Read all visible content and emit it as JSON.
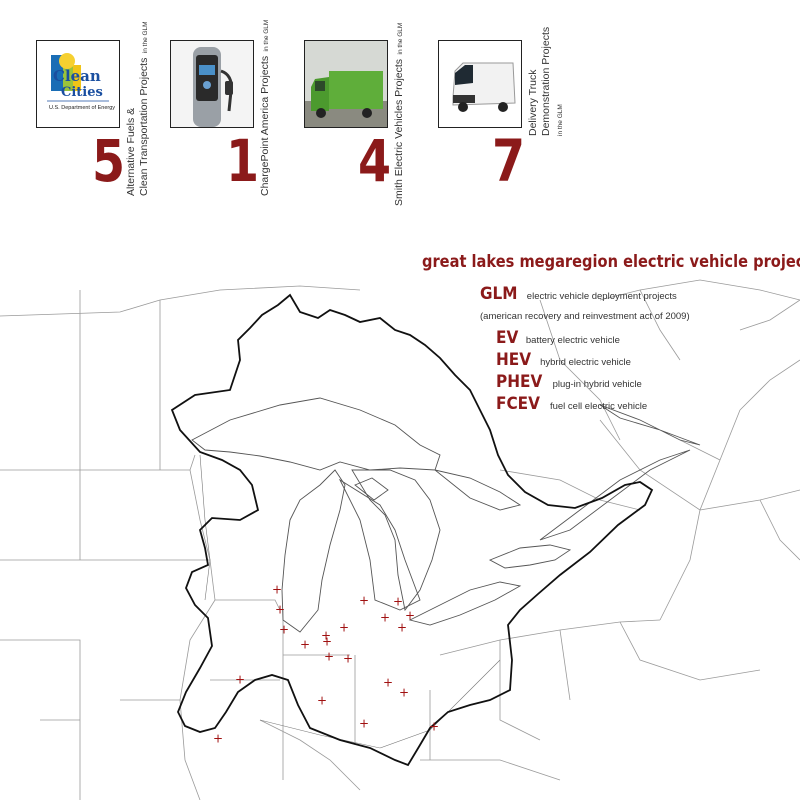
{
  "title": "great lakes megaregion electric vehicle projects",
  "glm": {
    "abbr": "GLM",
    "line1": "electric vehicle deployment projects",
    "line2": "(american recovery and reinvestment act of 2009)"
  },
  "legend": [
    {
      "abbr": "EV",
      "desc": "battery electric vehicle"
    },
    {
      "abbr": "HEV",
      "desc": "hybrid electric vehicle"
    },
    {
      "abbr": "PHEV",
      "desc": "plug-in hybrid vehicle"
    },
    {
      "abbr": "FCEV",
      "desc": "fuel cell electric vehicle"
    }
  ],
  "project_tiles": [
    {
      "count": "5",
      "label_line1": "Alternative Fuels &",
      "label_line2": "Clean Transportation Projects",
      "suffix": "in the GLM",
      "logo_text1": "Clean",
      "logo_text2": "Cities",
      "logo_text3": "U.S. Department of Energy"
    },
    {
      "count": "1",
      "label_line1": "ChargePoint America Projects",
      "suffix": "in the GLM",
      "image": "charging-station"
    },
    {
      "count": "4",
      "label_line1": "Smith Electric Vehicles Projects",
      "suffix": "in the GLM",
      "image": "green-delivery-truck"
    },
    {
      "count": "7",
      "label_line1": "Delivery Truck",
      "label_line2": "Demonstration Projects",
      "suffix": "in the GLM",
      "image": "white-delivery-van"
    }
  ],
  "colors": {
    "accent": "#8b1a1a",
    "marker": "#a01010",
    "boundary": "#111111",
    "state_lines": "#9a9a9a"
  },
  "map": {
    "marker_symbol": "+",
    "marker_count": 21
  }
}
